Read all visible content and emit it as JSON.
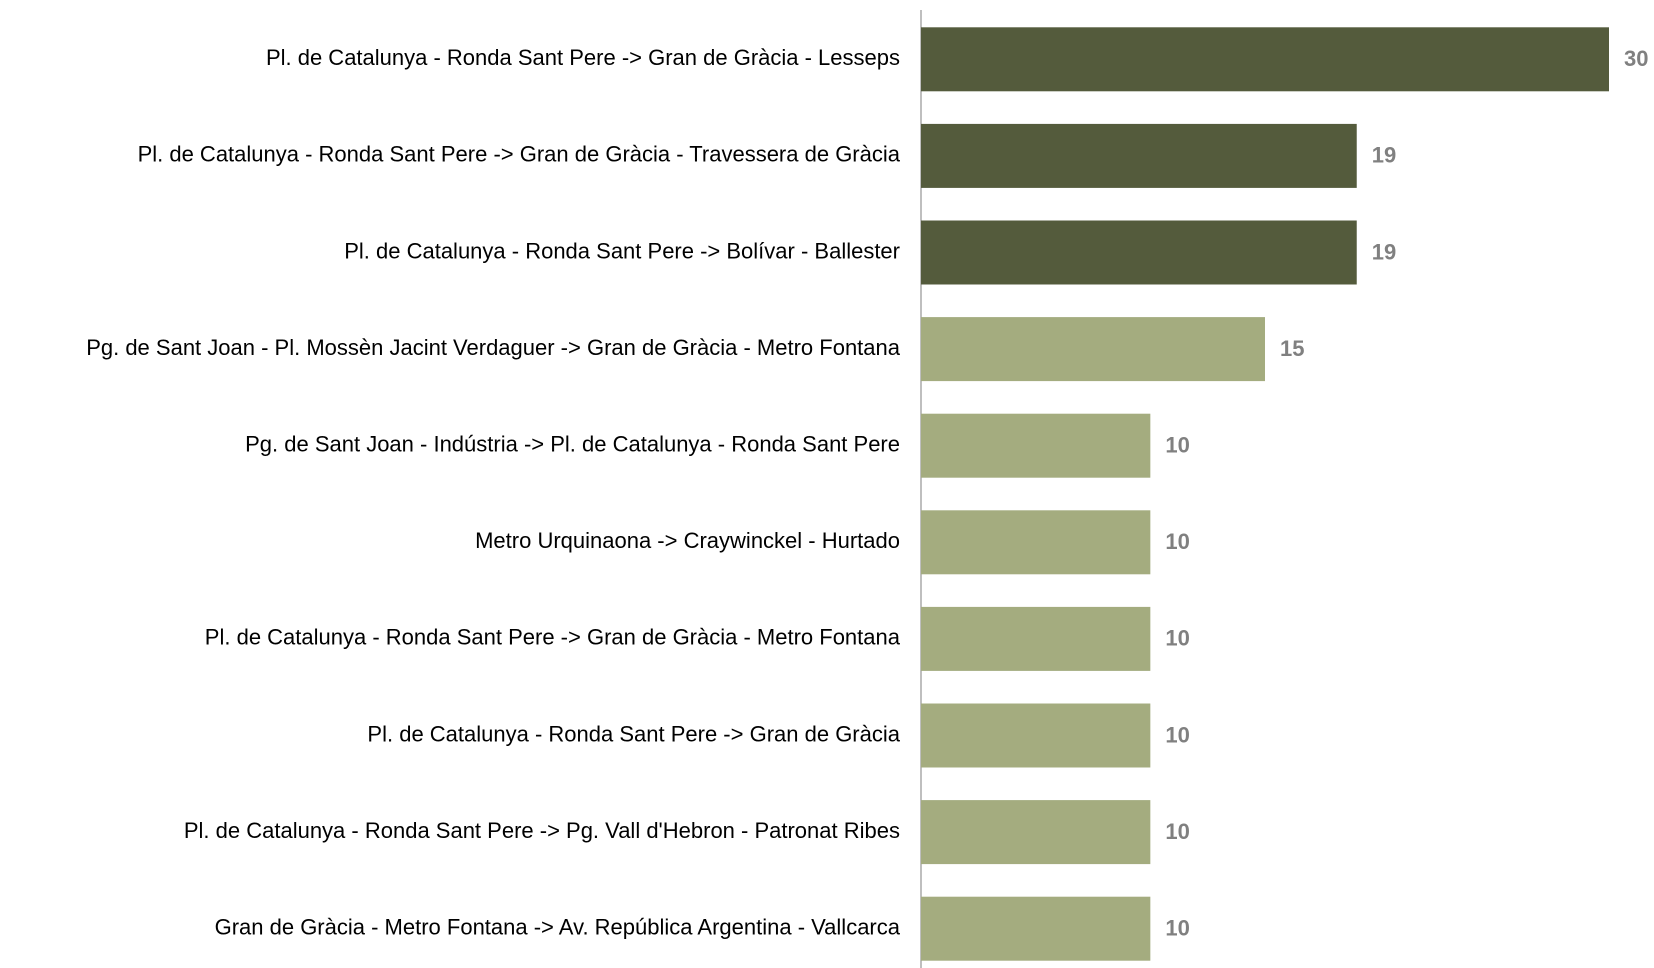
{
  "chart_data": {
    "type": "hbar",
    "categories": [
      "Pl. de Catalunya - Ronda Sant Pere -> Gran de Gràcia - Lesseps",
      "Pl. de Catalunya - Ronda Sant Pere -> Gran de Gràcia - Travessera de Gràcia",
      "Pl. de Catalunya - Ronda Sant Pere -> Bolívar - Ballester",
      "Pg. de Sant Joan - Pl. Mossèn Jacint Verdaguer -> Gran de Gràcia - Metro Fontana",
      "Pg. de Sant Joan - Indústria -> Pl. de Catalunya - Ronda Sant Pere",
      "Metro Urquinaona -> Craywinckel - Hurtado",
      "Pl. de Catalunya - Ronda Sant Pere -> Gran de Gràcia - Metro Fontana",
      "Pl. de Catalunya - Ronda Sant Pere -> Gran de Gràcia",
      "Pl. de Catalunya - Ronda Sant Pere -> Pg. Vall d'Hebron - Patronat Ribes",
      "Gran de Gràcia - Metro Fontana -> Av. República Argentina - Vallcarca"
    ],
    "values": [
      30,
      19,
      19,
      15,
      10,
      10,
      10,
      10,
      10,
      10
    ],
    "colors": [
      "#545b3c",
      "#545b3c",
      "#545b3c",
      "#a4ac7f",
      "#a4ac7f",
      "#a4ac7f",
      "#a4ac7f",
      "#a4ac7f",
      "#a4ac7f",
      "#a4ac7f"
    ],
    "xlim": [
      0,
      30
    ]
  }
}
